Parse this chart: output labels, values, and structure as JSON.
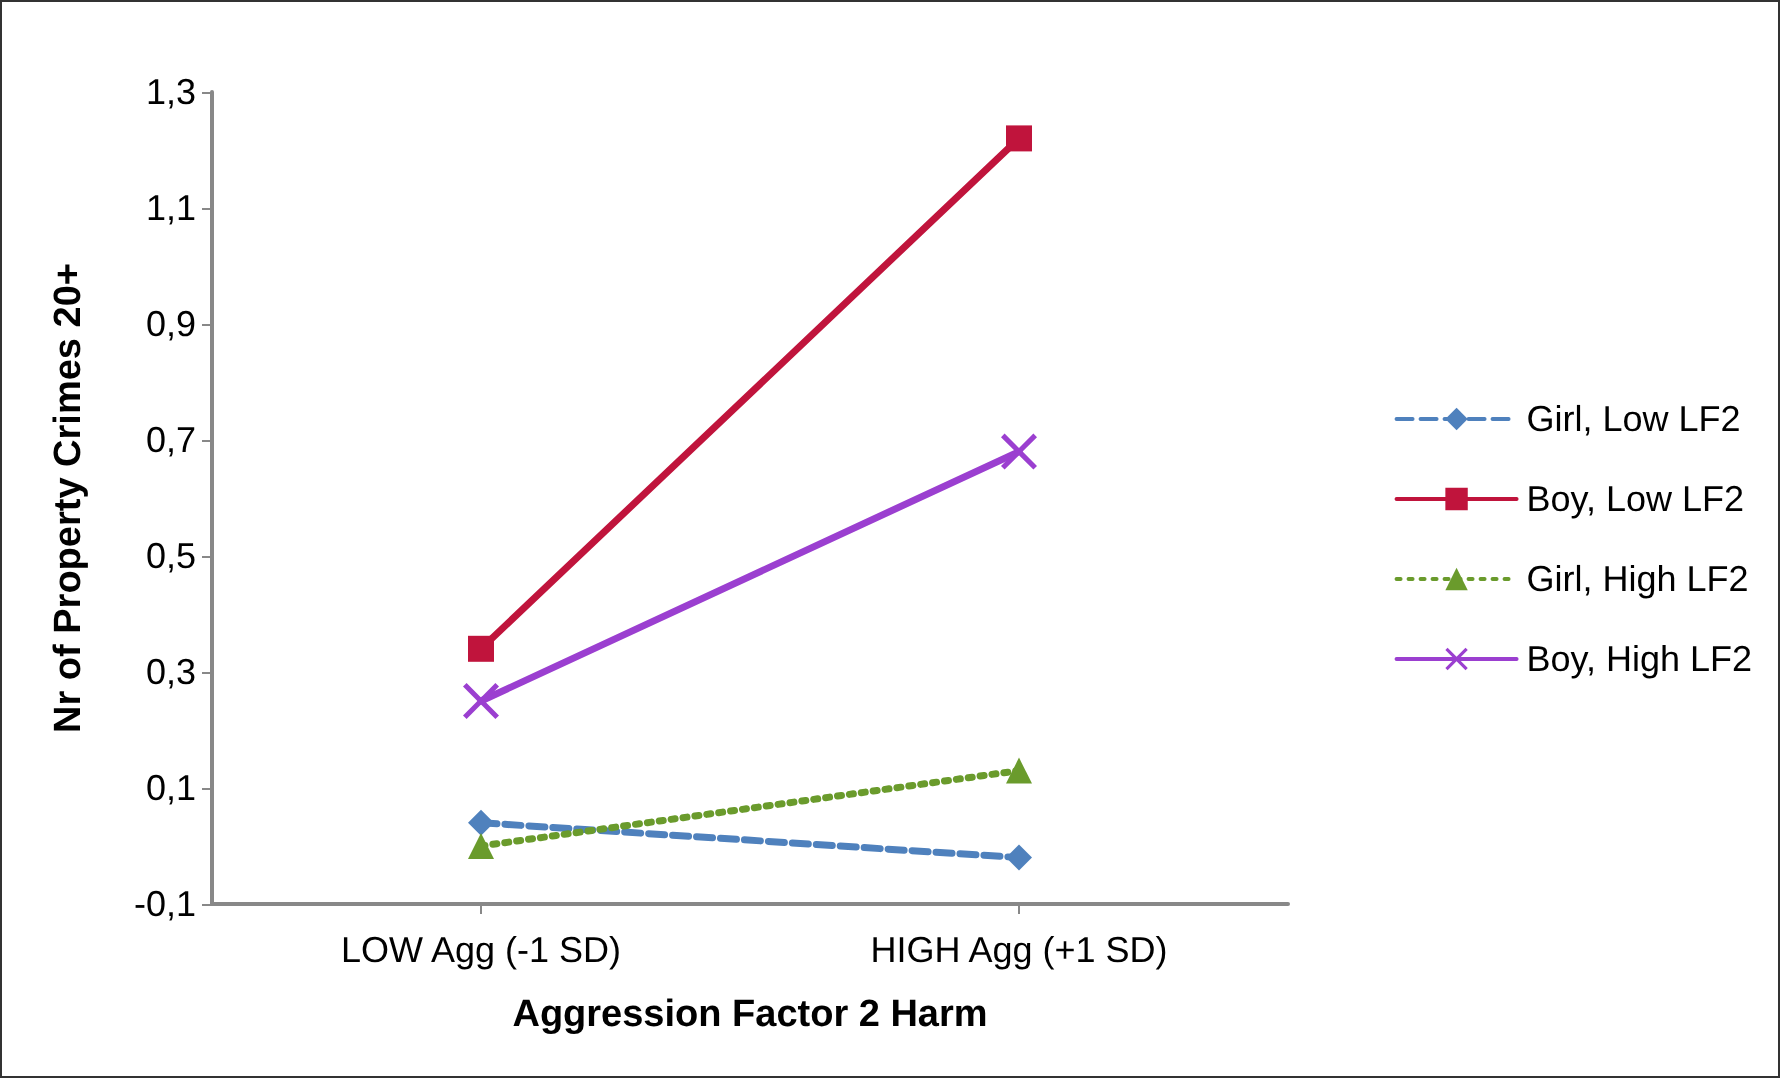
{
  "chart_data": {
    "type": "line",
    "xlabel": "Aggression Factor 2 Harm",
    "ylabel": "Nr of Property Crimes 20+",
    "categories": [
      "LOW Agg (-1 SD)",
      "HIGH Agg (+1 SD)"
    ],
    "series": [
      {
        "name": "Girl, Low LF2",
        "color": "#4f81bd",
        "values": [
          0.04,
          -0.02
        ],
        "marker": "diamond",
        "line_style": "dashed"
      },
      {
        "name": "Boy, Low LF2",
        "color": "#c0143c",
        "values": [
          0.34,
          1.22
        ],
        "marker": "square",
        "line_style": "solid"
      },
      {
        "name": "Girl, High LF2",
        "color": "#6a9b2c",
        "values": [
          0.0,
          0.13
        ],
        "marker": "triangle",
        "line_style": "dotted"
      },
      {
        "name": "Boy, High LF2",
        "color": "#9b3fd0",
        "values": [
          0.25,
          0.68
        ],
        "marker": "cross",
        "line_style": "solid"
      }
    ],
    "ylim": [
      -0.1,
      1.3
    ],
    "yticks": [
      {
        "value": -0.1,
        "label": "-0,1"
      },
      {
        "value": 0.1,
        "label": "0,1"
      },
      {
        "value": 0.3,
        "label": "0,3"
      },
      {
        "value": 0.5,
        "label": "0,5"
      },
      {
        "value": 0.7,
        "label": "0,7"
      },
      {
        "value": 0.9,
        "label": "0,9"
      },
      {
        "value": 1.1,
        "label": "1,1"
      },
      {
        "value": 1.3,
        "label": "1,3"
      }
    ],
    "grid": false,
    "legend": "right"
  }
}
